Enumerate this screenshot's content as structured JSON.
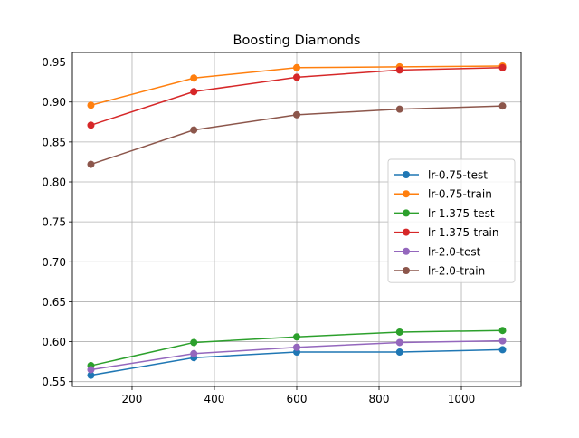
{
  "chart_data": {
    "type": "line",
    "title": "Boosting Diamonds",
    "xlabel": "",
    "ylabel": "",
    "x": [
      100,
      350,
      600,
      850,
      1100
    ],
    "xlim": [
      55,
      1145
    ],
    "ylim": [
      0.544,
      0.962
    ],
    "xticks": [
      200,
      400,
      600,
      800,
      1000
    ],
    "yticks": [
      0.55,
      0.6,
      0.65,
      0.7,
      0.75,
      0.8,
      0.85,
      0.9,
      0.95
    ],
    "ytick_labels": [
      "0.55",
      "0.60",
      "0.65",
      "0.70",
      "0.75",
      "0.80",
      "0.85",
      "0.90",
      "0.95"
    ],
    "grid": true,
    "legend_position": "center-right",
    "series": [
      {
        "name": "lr-0.75-test",
        "color": "#1f77b4",
        "values": [
          0.558,
          0.58,
          0.587,
          0.587,
          0.59
        ]
      },
      {
        "name": "lr-0.75-train",
        "color": "#ff7f0e",
        "values": [
          0.896,
          0.93,
          0.943,
          0.944,
          0.945
        ]
      },
      {
        "name": "lr-1.375-test",
        "color": "#2ca02c",
        "values": [
          0.57,
          0.599,
          0.606,
          0.612,
          0.614
        ]
      },
      {
        "name": "lr-1.375-train",
        "color": "#d62728",
        "values": [
          0.871,
          0.913,
          0.931,
          0.94,
          0.943
        ]
      },
      {
        "name": "lr-2.0-test",
        "color": "#9467bd",
        "values": [
          0.565,
          0.585,
          0.593,
          0.599,
          0.601
        ]
      },
      {
        "name": "lr-2.0-train",
        "color": "#8c564b",
        "values": [
          0.822,
          0.865,
          0.884,
          0.891,
          0.895
        ]
      }
    ]
  }
}
